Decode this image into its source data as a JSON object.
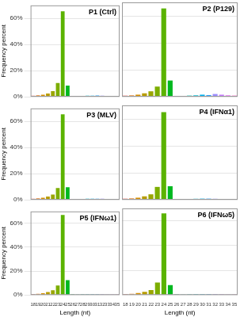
{
  "chart_data": [
    {
      "type": "bar",
      "title": "P1 (Ctrl)",
      "categories": [
        "18",
        "19",
        "20",
        "21",
        "22",
        "23",
        "24",
        "25",
        "26",
        "27",
        "28",
        "29",
        "30",
        "31",
        "32",
        "33",
        "34",
        "35"
      ],
      "values": [
        0.8,
        1.0,
        1.5,
        2.5,
        4.3,
        10.5,
        65.5,
        8.5,
        0.6,
        0.5,
        0.6,
        0.7,
        0.8,
        0.9,
        0.7,
        0.6,
        0.5,
        0.4
      ],
      "colors": [
        "#F8766D",
        "#E8852F",
        "#D89000",
        "#B89D00",
        "#9AA600",
        "#7CAE00",
        "#5BB300",
        "#00B81F",
        "#00BC5B",
        "#00BF8A",
        "#00C0B2",
        "#00BCD6",
        "#00B3F2",
        "#29A3FF",
        "#9C8DFF",
        "#C77CFF",
        "#E76BF3",
        "#FF61C7"
      ],
      "ylim": [
        0,
        70
      ],
      "yticks": [
        {
          "value": 0,
          "label": "0%"
        },
        {
          "value": 20,
          "label": "20%"
        },
        {
          "value": 40,
          "label": "40%"
        },
        {
          "value": 60,
          "label": "60%"
        }
      ],
      "y_label": "Frequency percent",
      "tick_labels": "y",
      "grid": true
    },
    {
      "type": "bar",
      "title": "P2 (P129)",
      "categories": [
        "18",
        "19",
        "20",
        "21",
        "22",
        "23",
        "24",
        "25",
        "26",
        "27",
        "28",
        "29",
        "30",
        "31",
        "32",
        "33",
        "34",
        "35"
      ],
      "values": [
        0.8,
        1.0,
        1.5,
        2.5,
        4.0,
        7.5,
        65.5,
        12.0,
        0.6,
        0.6,
        0.8,
        1.0,
        1.5,
        1.2,
        2.0,
        1.5,
        1.0,
        0.8
      ],
      "colors": [
        "#F8766D",
        "#E8852F",
        "#D89000",
        "#B89D00",
        "#9AA600",
        "#7CAE00",
        "#5BB300",
        "#00B81F",
        "#00BC5B",
        "#00BF8A",
        "#00C0B2",
        "#00BCD6",
        "#00B3F2",
        "#29A3FF",
        "#9C8DFF",
        "#C77CFF",
        "#E76BF3",
        "#FF61C7"
      ],
      "ylim": [
        0,
        70
      ],
      "yticks": [
        {
          "value": 0,
          "label": "0%"
        },
        {
          "value": 20,
          "label": "20%"
        },
        {
          "value": 40,
          "label": "40%"
        },
        {
          "value": 60,
          "label": "60%"
        }
      ],
      "tick_labels": false,
      "grid": true
    },
    {
      "type": "bar",
      "title": "P3 (MLV)",
      "categories": [
        "18",
        "19",
        "20",
        "21",
        "22",
        "23",
        "24",
        "25",
        "26",
        "27",
        "28",
        "29",
        "30",
        "31",
        "32",
        "33",
        "34",
        "35"
      ],
      "values": [
        0.8,
        1.0,
        1.5,
        2.5,
        4.0,
        9.0,
        65.5,
        9.5,
        0.6,
        0.5,
        0.6,
        0.7,
        0.8,
        0.8,
        0.7,
        0.6,
        0.5,
        0.4
      ],
      "colors": [
        "#F8766D",
        "#E8852F",
        "#D89000",
        "#B89D00",
        "#9AA600",
        "#7CAE00",
        "#5BB300",
        "#00B81F",
        "#00BC5B",
        "#00BF8A",
        "#00C0B2",
        "#00BCD6",
        "#00B3F2",
        "#29A3FF",
        "#9C8DFF",
        "#C77CFF",
        "#E76BF3",
        "#FF61C7"
      ],
      "ylim": [
        0,
        70
      ],
      "yticks": [
        {
          "value": 0,
          "label": "0%"
        },
        {
          "value": 20,
          "label": "20%"
        },
        {
          "value": 40,
          "label": "40%"
        },
        {
          "value": 60,
          "label": "60%"
        }
      ],
      "y_label": "Frequency percent",
      "tick_labels": "y",
      "grid": true
    },
    {
      "type": "bar",
      "title": "P4 (IFNα1)",
      "categories": [
        "18",
        "19",
        "20",
        "21",
        "22",
        "23",
        "24",
        "25",
        "26",
        "27",
        "28",
        "29",
        "30",
        "31",
        "32",
        "33",
        "34",
        "35"
      ],
      "values": [
        0.8,
        1.0,
        1.5,
        2.5,
        4.0,
        9.5,
        65.0,
        10.0,
        0.6,
        0.5,
        0.6,
        0.7,
        0.8,
        0.8,
        0.7,
        0.6,
        0.5,
        0.4
      ],
      "colors": [
        "#F8766D",
        "#E8852F",
        "#D89000",
        "#B89D00",
        "#9AA600",
        "#7CAE00",
        "#5BB300",
        "#00B81F",
        "#00BC5B",
        "#00BF8A",
        "#00C0B2",
        "#00BCD6",
        "#00B3F2",
        "#29A3FF",
        "#9C8DFF",
        "#C77CFF",
        "#E76BF3",
        "#FF61C7"
      ],
      "ylim": [
        0,
        70
      ],
      "yticks": [
        {
          "value": 0,
          "label": "0%"
        },
        {
          "value": 20,
          "label": "20%"
        },
        {
          "value": 40,
          "label": "40%"
        },
        {
          "value": 60,
          "label": "60%"
        }
      ],
      "tick_labels": false,
      "grid": true
    },
    {
      "type": "bar",
      "title": "P5 (IFNω1)",
      "categories": [
        "18",
        "19",
        "20",
        "21",
        "22",
        "23",
        "24",
        "25",
        "26",
        "27",
        "28",
        "29",
        "30",
        "31",
        "32",
        "33",
        "34",
        "35"
      ],
      "values": [
        0.8,
        1.0,
        1.5,
        2.5,
        4.0,
        8.0,
        67.0,
        12.5,
        0.6,
        0.5,
        0.6,
        0.7,
        0.7,
        0.7,
        0.6,
        0.5,
        0.5,
        0.4
      ],
      "colors": [
        "#F8766D",
        "#E8852F",
        "#D89000",
        "#B89D00",
        "#9AA600",
        "#7CAE00",
        "#5BB300",
        "#00B81F",
        "#00BC5B",
        "#00BF8A",
        "#00C0B2",
        "#00BCD6",
        "#00B3F2",
        "#29A3FF",
        "#9C8DFF",
        "#C77CFF",
        "#E76BF3",
        "#FF61C7"
      ],
      "ylim": [
        0,
        70
      ],
      "yticks": [
        {
          "value": 0,
          "label": "0%"
        },
        {
          "value": 20,
          "label": "20%"
        },
        {
          "value": 40,
          "label": "40%"
        },
        {
          "value": 60,
          "label": "60%"
        }
      ],
      "y_label": "Frequency percent",
      "x_label": "Length (nt)",
      "tick_labels": true,
      "grid": true
    },
    {
      "type": "bar",
      "title": "P6 (IFNω5)",
      "categories": [
        "18",
        "19",
        "20",
        "21",
        "22",
        "23",
        "24",
        "25",
        "26",
        "27",
        "28",
        "29",
        "30",
        "31",
        "32",
        "33",
        "34",
        "35"
      ],
      "values": [
        0.8,
        1.0,
        1.5,
        2.5,
        4.0,
        10.0,
        66.0,
        8.0,
        0.6,
        0.5,
        0.6,
        0.7,
        0.8,
        0.8,
        0.7,
        0.6,
        0.5,
        0.4
      ],
      "colors": [
        "#F8766D",
        "#E8852F",
        "#D89000",
        "#B89D00",
        "#9AA600",
        "#7CAE00",
        "#5BB300",
        "#00B81F",
        "#00BC5B",
        "#00BF8A",
        "#00C0B2",
        "#00BCD6",
        "#00B3F2",
        "#29A3FF",
        "#9C8DFF",
        "#C77CFF",
        "#E76BF3",
        "#FF61C7"
      ],
      "ylim": [
        0,
        70
      ],
      "yticks": [
        {
          "value": 0,
          "label": "0%"
        },
        {
          "value": 20,
          "label": "20%"
        },
        {
          "value": 40,
          "label": "40%"
        },
        {
          "value": 60,
          "label": "60%"
        }
      ],
      "x_label": "Length (nt)",
      "tick_labels": "x",
      "grid": true
    }
  ]
}
